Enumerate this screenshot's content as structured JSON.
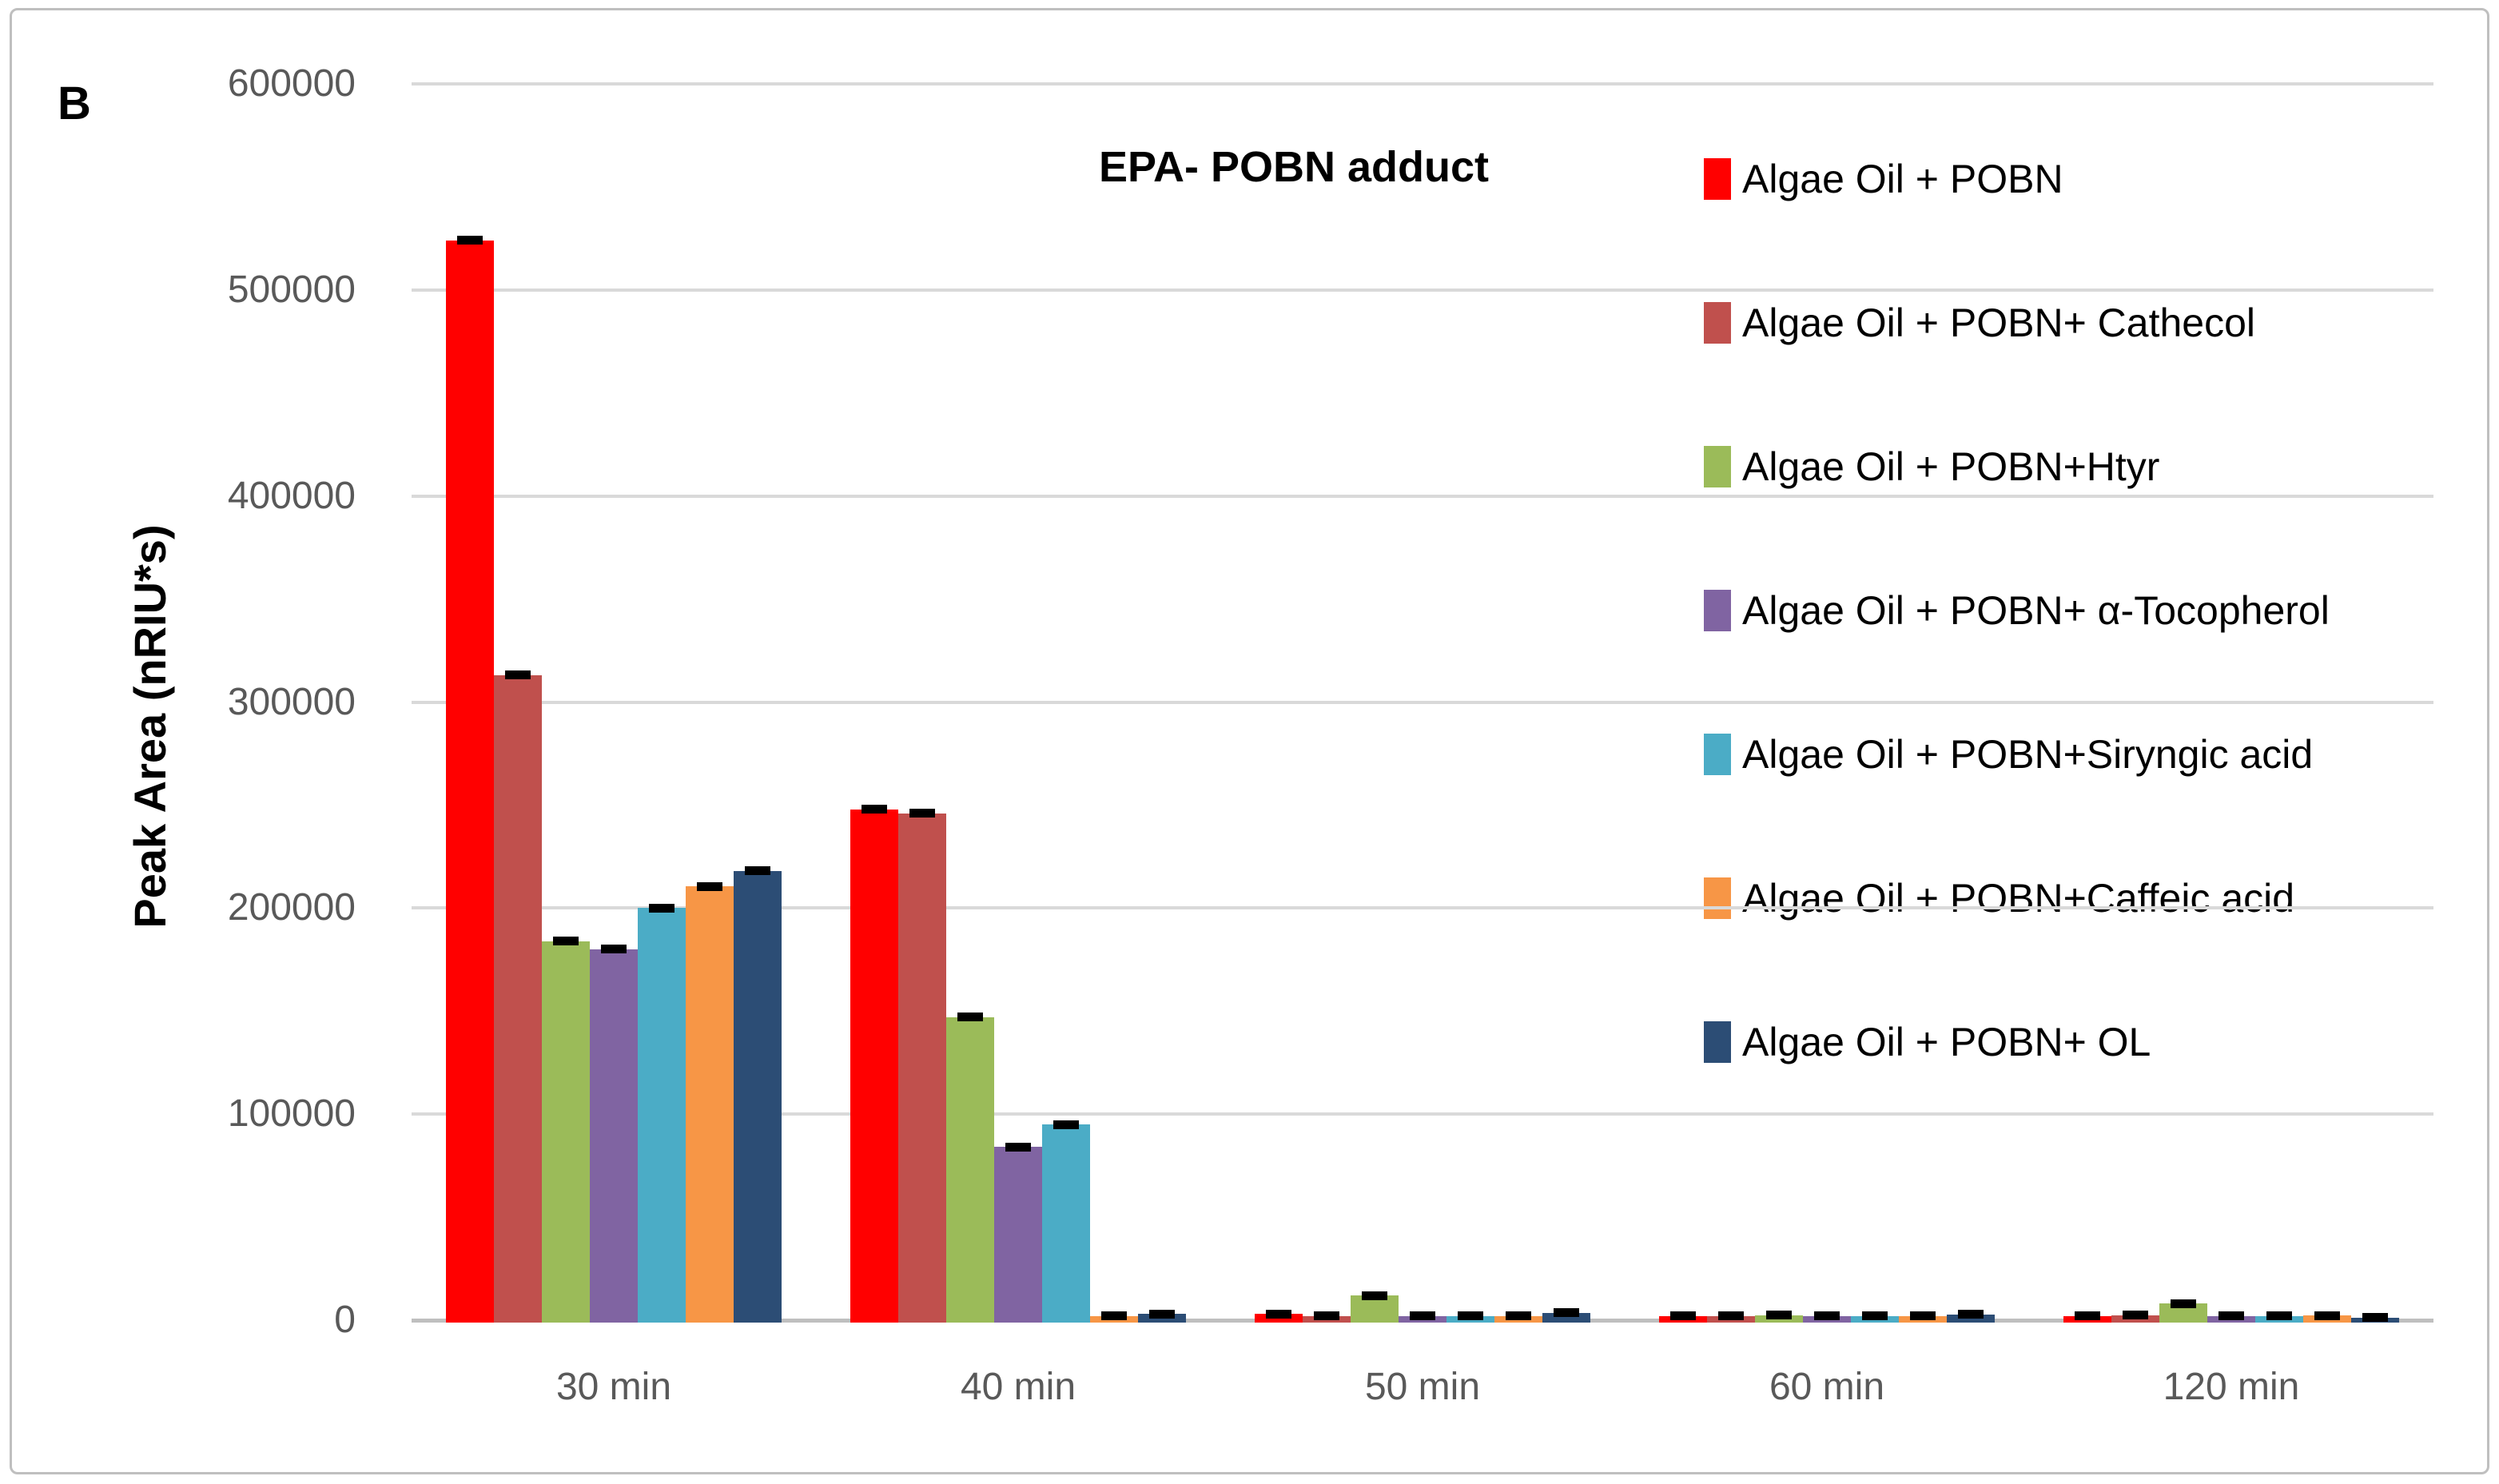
{
  "panel_label": "B",
  "chart_data": {
    "type": "bar",
    "title": "EPA- POBN adduct",
    "xlabel": "",
    "ylabel": "Peak Area (nRIU*s)",
    "ylim": [
      0,
      600000
    ],
    "ytick_step": 100000,
    "ytick_labels": [
      "600000",
      "500000",
      "400000",
      "300000",
      "200000",
      "100000",
      "0"
    ],
    "grid": true,
    "legend_position": "right",
    "error_bars": true,
    "categories": [
      "30 min",
      "40 min",
      "50 min",
      "60 min",
      "120 min"
    ],
    "series": [
      {
        "name": "Algae Oil + POBN",
        "color": "#FF0000",
        "values": [
          524000,
          248000,
          3000,
          2000,
          2000
        ],
        "errors": [
          4000,
          2500,
          1800,
          1500,
          1500
        ]
      },
      {
        "name": "Algae Oil + POBN+ Cathecol",
        "color": "#C0504D",
        "values": [
          313000,
          246000,
          2000,
          2000,
          2500
        ],
        "errors": [
          3500,
          2500,
          1500,
          1500,
          1500
        ]
      },
      {
        "name": "Algae Oil + POBN+Htyr",
        "color": "#9BBB59",
        "values": [
          184000,
          147000,
          12000,
          2500,
          8000
        ],
        "errors": [
          3000,
          2500,
          2000,
          1500,
          2200
        ]
      },
      {
        "name": "Algae Oil + POBN+ α-Tocopherol",
        "color": "#8064A2",
        "values": [
          180000,
          84000,
          2000,
          2000,
          2000
        ],
        "errors": [
          2500,
          2000,
          1500,
          1500,
          1500
        ]
      },
      {
        "name": "Algae Oil + POBN+Siryngic acid",
        "color": "#4BACC6",
        "values": [
          200000,
          95000,
          2000,
          2000,
          2000
        ],
        "errors": [
          3000,
          2500,
          1500,
          1500,
          1500
        ]
      },
      {
        "name": "Algae Oil + POBN+Caffeic acid",
        "color": "#F79646",
        "values": [
          210500,
          2000,
          2000,
          2000,
          2200
        ],
        "errors": [
          3000,
          1500,
          1500,
          1500,
          1500
        ]
      },
      {
        "name": "Algae Oil + POBN+ OL",
        "color": "#2C4D75",
        "values": [
          218000,
          3000,
          3500,
          2800,
          1200
        ],
        "errors": [
          3000,
          1800,
          1800,
          1800,
          1200
        ]
      }
    ]
  }
}
